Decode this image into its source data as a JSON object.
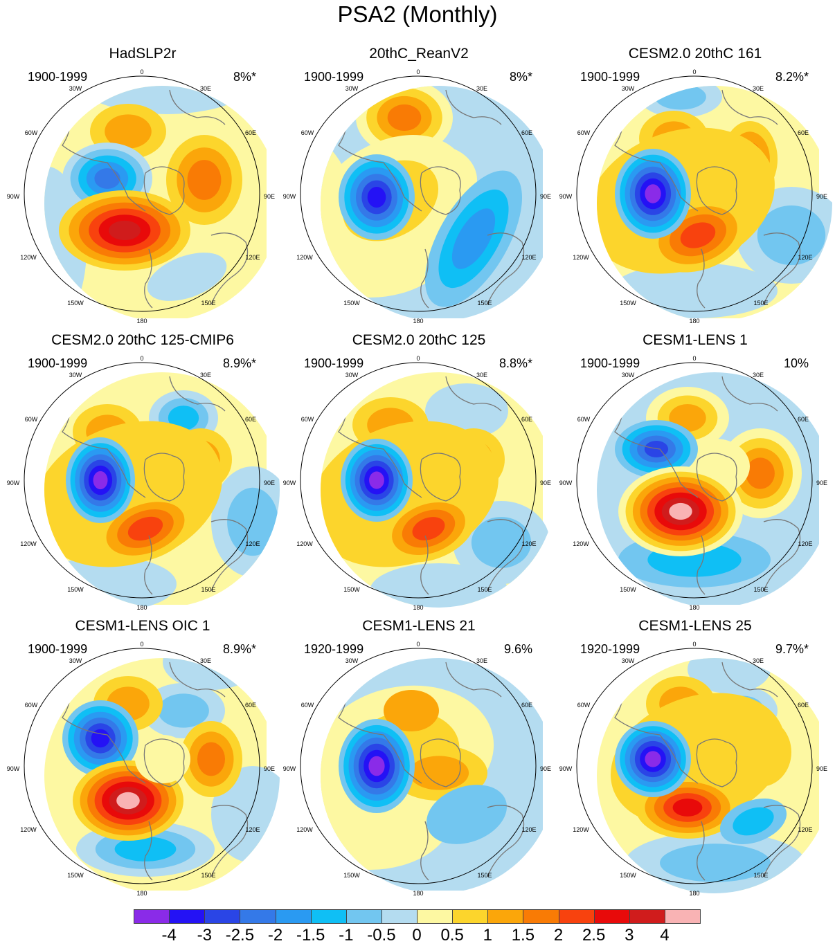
{
  "figure": {
    "title": "PSA2 (Monthly)"
  },
  "longitude_labels": {
    "0": "0",
    "30E": "30E",
    "60E": "60E",
    "90E": "90E",
    "120E": "120E",
    "150E": "150E",
    "180": "180",
    "150W": "150W",
    "120W": "120W",
    "90W": "90W",
    "60W": "60W",
    "30W": "30W"
  },
  "panels": [
    {
      "title": "HadSLP2r",
      "years": "1900-1999",
      "variance": "8%*"
    },
    {
      "title": "20thC_ReanV2",
      "years": "1900-1999",
      "variance": "8%*"
    },
    {
      "title": "CESM2.0 20thC 161",
      "years": "1900-1999",
      "variance": "8.2%*"
    },
    {
      "title": "CESM2.0 20thC 125-CMIP6",
      "years": "1900-1999",
      "variance": "8.9%*"
    },
    {
      "title": "CESM2.0 20thC 125",
      "years": "1900-1999",
      "variance": "8.8%*"
    },
    {
      "title": "CESM1-LENS 1",
      "years": "1900-1999",
      "variance": "10%"
    },
    {
      "title": "CESM1-LENS OIC 1",
      "years": "1900-1999",
      "variance": "8.9%*"
    },
    {
      "title": "CESM1-LENS 21",
      "years": "1920-1999",
      "variance": "9.6%"
    },
    {
      "title": "CESM1-LENS 25",
      "years": "1920-1999",
      "variance": "9.7%*"
    }
  ],
  "colorbar": {
    "colors": [
      "#8a2be8",
      "#2412f5",
      "#2a45e6",
      "#3479e8",
      "#2a9af2",
      "#0fbff5",
      "#72c6f0",
      "#b4dcf0",
      "#fdf8a2",
      "#fcd52c",
      "#fba60a",
      "#f97b05",
      "#f8420e",
      "#e80a0a",
      "#d01c1c",
      "#f9b3b4"
    ],
    "labels": [
      "-4",
      "-3",
      "-2.5",
      "-2",
      "-1.5",
      "-1",
      "-0.5",
      "0",
      "0.5",
      "1",
      "1.5",
      "2",
      "2.5",
      "3",
      "4"
    ]
  }
}
